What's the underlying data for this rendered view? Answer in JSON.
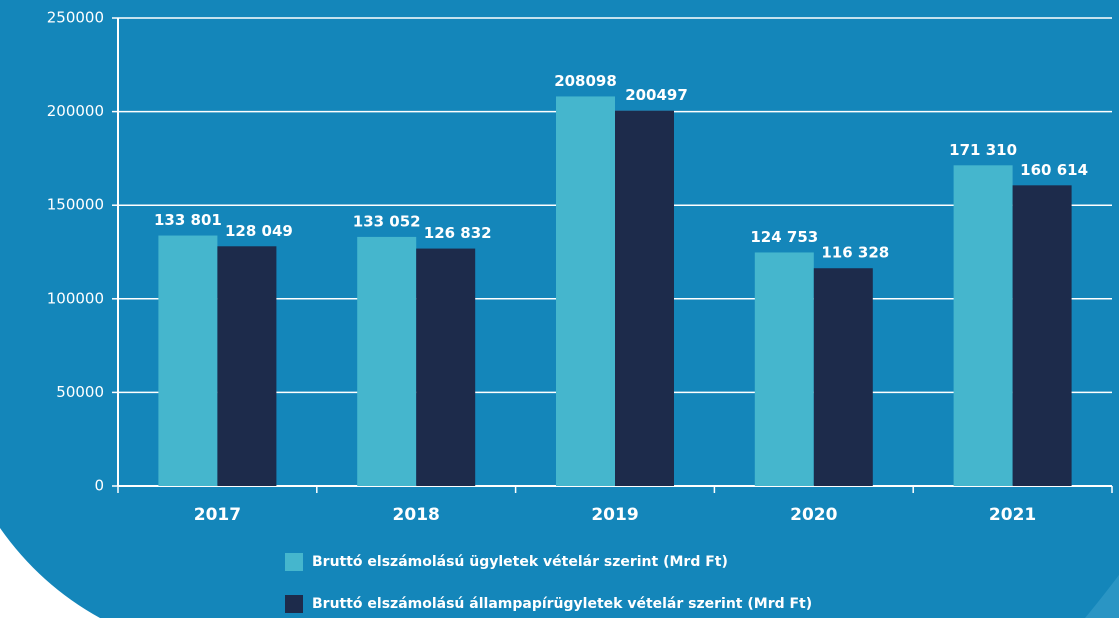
{
  "chart_data": {
    "type": "bar",
    "categories": [
      "2017",
      "2018",
      "2019",
      "2020",
      "2021"
    ],
    "series": [
      {
        "name": "Bruttó elszámolású ügyletek vételár szerint (Mrd Ft)",
        "color": "#45b6cd",
        "values": [
          133801,
          133052,
          208098,
          124753,
          171310
        ],
        "value_labels": [
          "133 801",
          "133 052",
          "208098",
          "124 753",
          "171 310"
        ]
      },
      {
        "name": "Bruttó elszámolású állampapírügyletek vételár szerint (Mrd Ft)",
        "color": "#1d2b4b",
        "values": [
          128049,
          126832,
          200497,
          116328,
          160614
        ],
        "value_labels": [
          "128 049",
          "126 832",
          "200497",
          "116 328",
          "160 614"
        ]
      }
    ],
    "ylim": [
      0,
      250000
    ],
    "yticks": [
      0,
      50000,
      100000,
      150000,
      200000,
      250000
    ],
    "grid": true,
    "legend": "bottom"
  }
}
